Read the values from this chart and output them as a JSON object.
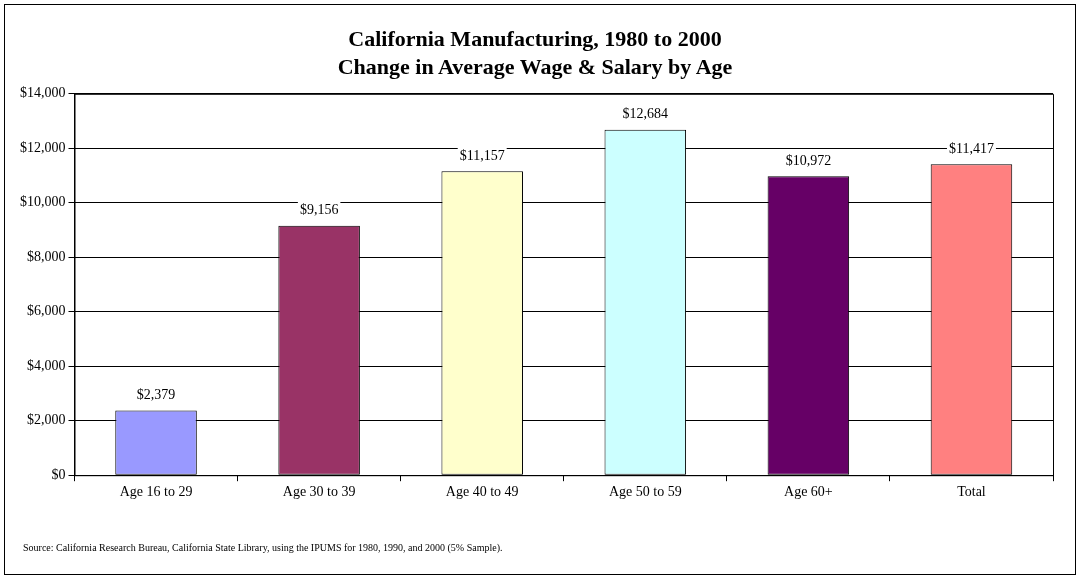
{
  "chart_data": {
    "type": "bar",
    "title": "California Manufacturing, 1980 to 2000",
    "subtitle": "Change in Average Wage & Salary by Age",
    "categories": [
      "Age 16 to 29",
      "Age 30 to 39",
      "Age 40 to 49",
      "Age 50 to 59",
      "Age 60+",
      "Total"
    ],
    "values": [
      2379,
      9156,
      11157,
      12684,
      10972,
      11417
    ],
    "colors": [
      "#9999ff",
      "#993366",
      "#ffffcc",
      "#ccffff",
      "#660066",
      "#ff8080"
    ],
    "value_labels": [
      "$2,379",
      "$9,156",
      "$11,157",
      "$12,684",
      "$10,972",
      "$11,417"
    ],
    "ylim": [
      0,
      14000
    ],
    "yticks": [
      {
        "value": 0,
        "label": "$0"
      },
      {
        "value": 2000,
        "label": "$2,000"
      },
      {
        "value": 4000,
        "label": "$4,000"
      },
      {
        "value": 6000,
        "label": "$6,000"
      },
      {
        "value": 8000,
        "label": "$8,000"
      },
      {
        "value": 10000,
        "label": "$10,000"
      },
      {
        "value": 12000,
        "label": "$12,000"
      },
      {
        "value": 14000,
        "label": "$14,000"
      }
    ],
    "grid": "y",
    "legend": false,
    "annotations": [
      "Source:  California Research Bureau, California State Library, using the IPUMS for 1980, 1990, and 2000 (5% Sample)."
    ]
  }
}
